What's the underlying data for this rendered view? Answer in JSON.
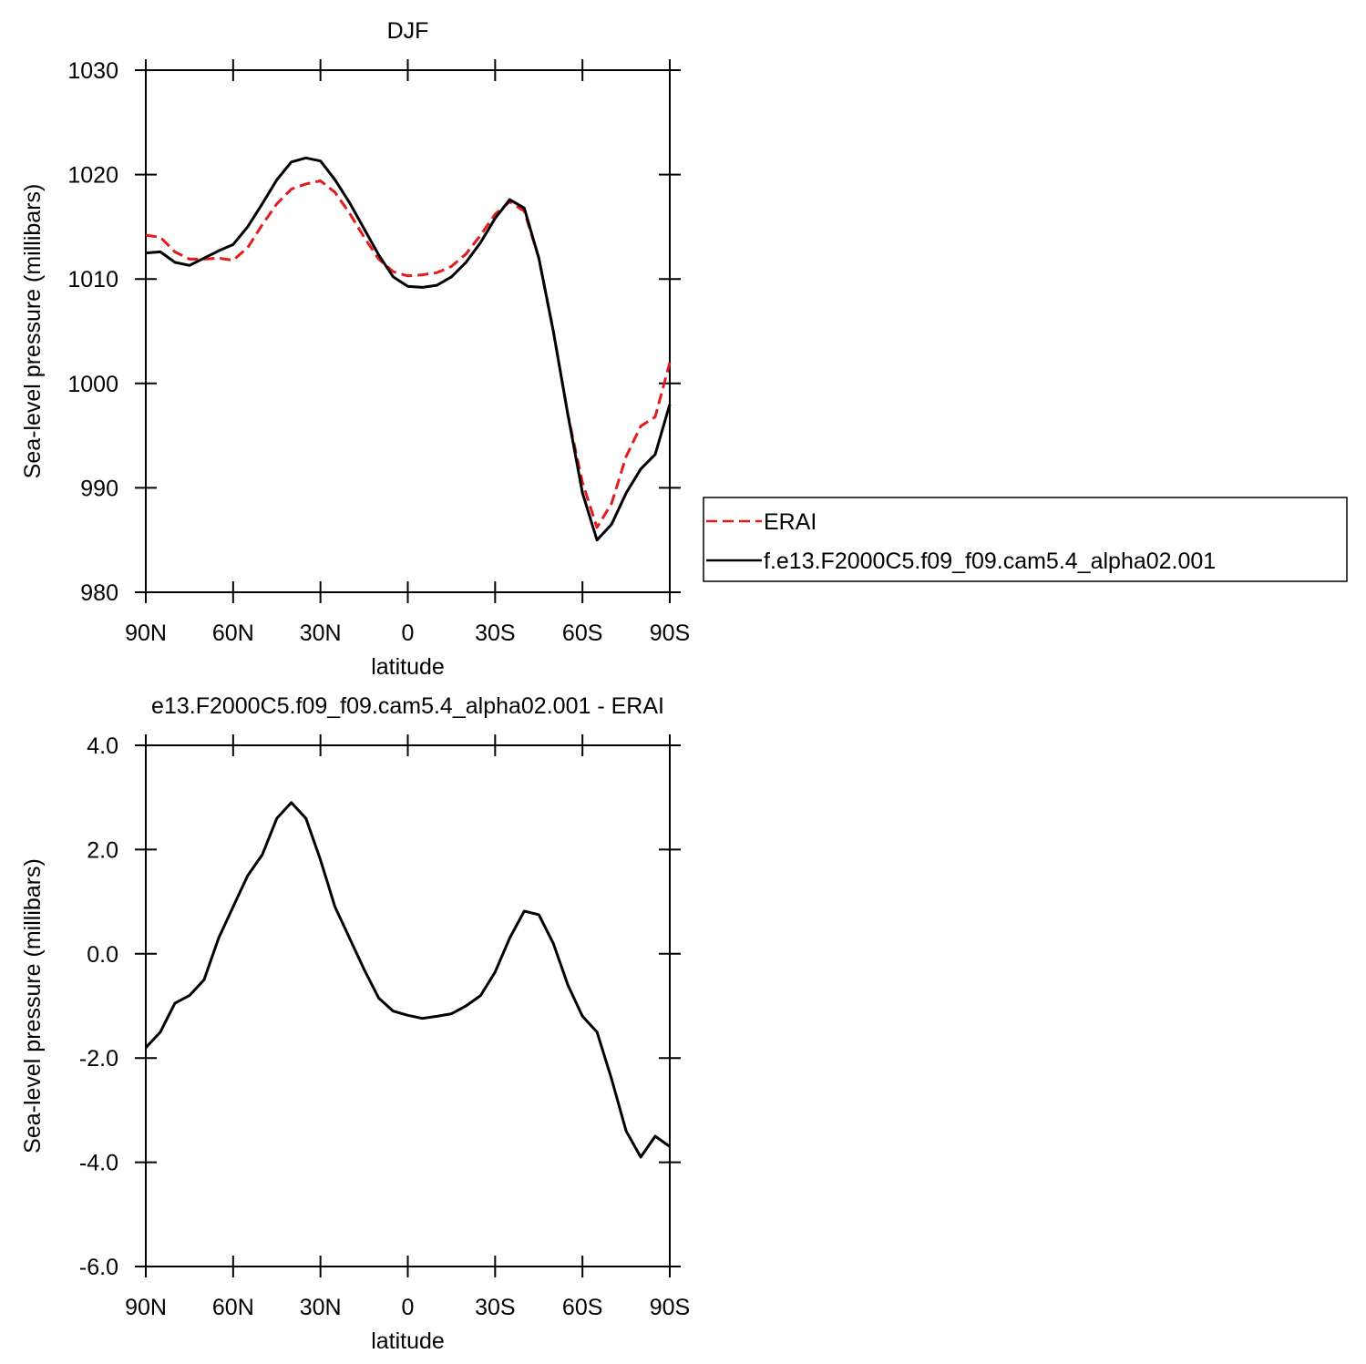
{
  "chart_data": [
    {
      "type": "line",
      "title": "DJF",
      "xlabel": "latitude",
      "ylabel": "Sea-level pressure (millibars)",
      "x": [
        90,
        85,
        80,
        75,
        70,
        65,
        60,
        55,
        50,
        45,
        40,
        35,
        30,
        25,
        20,
        15,
        10,
        5,
        0,
        -5,
        -10,
        -15,
        -20,
        -25,
        -30,
        -35,
        -40,
        -45,
        -50,
        -55,
        -60,
        -65,
        -70,
        -75,
        -80,
        -85,
        -90
      ],
      "xlim": [
        90,
        -90
      ],
      "xticks": [
        {
          "value": 90,
          "label": "90N"
        },
        {
          "value": 60,
          "label": "60N"
        },
        {
          "value": 30,
          "label": "30N"
        },
        0,
        {
          "value": -30,
          "label": "30S"
        },
        {
          "value": -60,
          "label": "60S"
        },
        {
          "value": -90,
          "label": "90S"
        }
      ],
      "ylim": [
        980,
        1030
      ],
      "yticks": [
        980,
        990,
        1000,
        1010,
        1020,
        1030
      ],
      "series": [
        {
          "name": "ERAI",
          "color": "#e41a1c",
          "line_style": "dashed",
          "values": [
            1014.2,
            1014.0,
            1012.6,
            1011.9,
            1011.9,
            1012.0,
            1011.8,
            1013.0,
            1015.2,
            1017.2,
            1018.6,
            1019.1,
            1019.4,
            1018.3,
            1016.3,
            1014.0,
            1011.9,
            1010.7,
            1010.3,
            1010.4,
            1010.6,
            1011.2,
            1012.4,
            1014.2,
            1016.2,
            1017.4,
            1016.5,
            1012.0,
            1005.0,
            997.0,
            990.5,
            986.2,
            988.5,
            993.0,
            995.9,
            996.8,
            1002.0
          ]
        },
        {
          "name": "f.e13.F2000C5.f09_f09.cam5.4_alpha02.001",
          "color": "#000000",
          "line_style": "solid",
          "values": [
            1012.5,
            1012.6,
            1011.6,
            1011.3,
            1012.0,
            1012.7,
            1013.3,
            1015.0,
            1017.2,
            1019.5,
            1021.2,
            1021.6,
            1021.3,
            1019.5,
            1017.3,
            1014.8,
            1012.3,
            1010.2,
            1009.3,
            1009.2,
            1009.4,
            1010.2,
            1011.6,
            1013.5,
            1015.8,
            1017.6,
            1016.8,
            1012.0,
            1005.0,
            997.0,
            989.5,
            985.0,
            986.5,
            989.5,
            991.8,
            993.2,
            998.0
          ]
        }
      ]
    },
    {
      "type": "line",
      "title": "e13.F2000C5.f09_f09.cam5.4_alpha02.001 - ERAI",
      "xlabel": "latitude",
      "ylabel": "Sea-level pressure (millibars)",
      "x": [
        90,
        85,
        80,
        75,
        70,
        65,
        60,
        55,
        50,
        45,
        40,
        35,
        30,
        25,
        20,
        15,
        10,
        5,
        0,
        -5,
        -10,
        -15,
        -20,
        -25,
        -30,
        -35,
        -40,
        -45,
        -50,
        -55,
        -60,
        -65,
        -70,
        -75,
        -80,
        -85,
        -90
      ],
      "xlim": [
        90,
        -90
      ],
      "xticks": [
        {
          "value": 90,
          "label": "90N"
        },
        {
          "value": 60,
          "label": "60N"
        },
        {
          "value": 30,
          "label": "30N"
        },
        0,
        {
          "value": -30,
          "label": "30S"
        },
        {
          "value": -60,
          "label": "60S"
        },
        {
          "value": -90,
          "label": "90S"
        }
      ],
      "ylim": [
        -6,
        4
      ],
      "yticks": [
        {
          "value": -6,
          "label": "-6.0"
        },
        {
          "value": -4,
          "label": "-4.0"
        },
        {
          "value": -2,
          "label": "-2.0"
        },
        {
          "value": 0,
          "label": "0.0"
        },
        {
          "value": 2,
          "label": "2.0"
        },
        {
          "value": 4,
          "label": "4.0"
        }
      ],
      "color": "#000000",
      "values": [
        -1.8,
        -1.5,
        -0.95,
        -0.8,
        -0.5,
        0.3,
        0.9,
        1.5,
        1.9,
        2.6,
        2.9,
        2.6,
        1.8,
        0.9,
        0.3,
        -0.3,
        -0.85,
        -1.1,
        -1.18,
        -1.24,
        -1.2,
        -1.15,
        -1.0,
        -0.8,
        -0.35,
        0.3,
        0.82,
        0.75,
        0.2,
        -0.6,
        -1.2,
        -1.5,
        -2.4,
        -3.4,
        -3.9,
        -3.5,
        -3.7
      ]
    }
  ]
}
